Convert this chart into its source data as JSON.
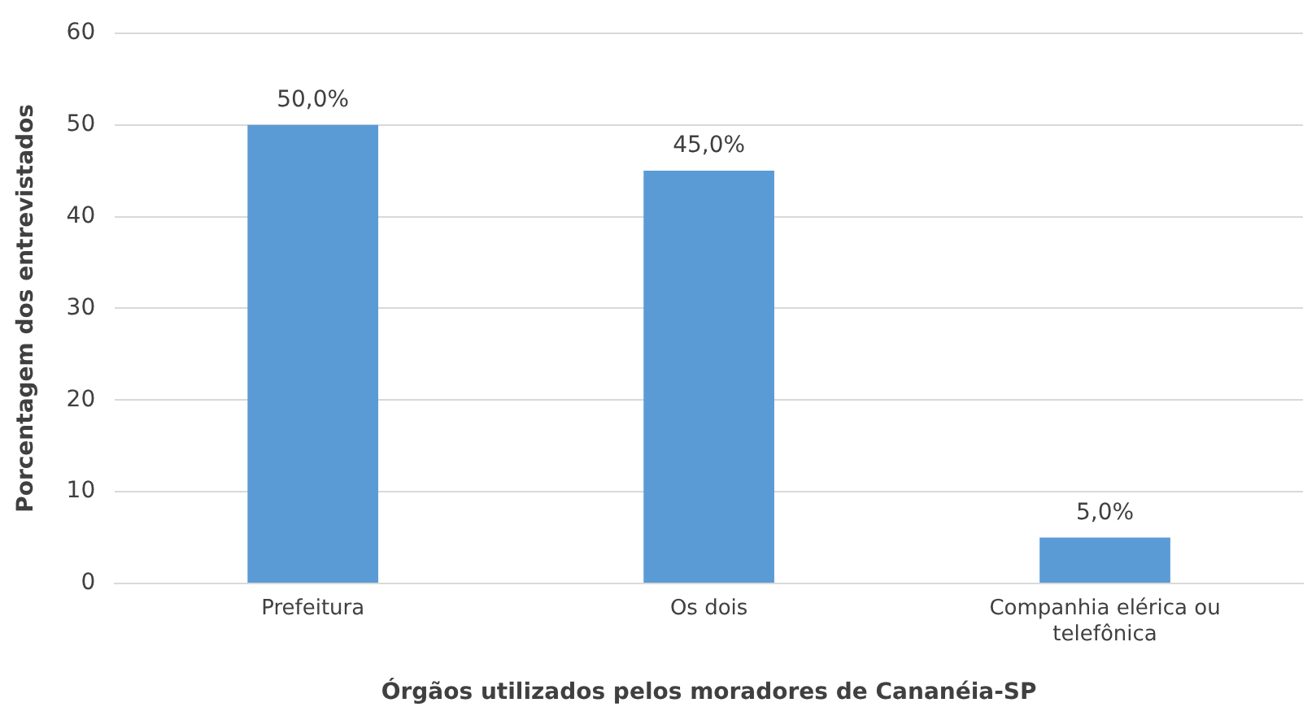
{
  "chart_data": {
    "type": "bar",
    "xlabel": "Órgãos utilizados pelos moradores de Cananéia-SP",
    "ylabel": "Porcentagem dos entrevistados",
    "categories": [
      "Prefeitura",
      "Os dois",
      "Companhia elérica ou telefônica"
    ],
    "values": [
      50,
      45,
      5
    ],
    "color": "#5b9bd5",
    "value_labels": [
      "50,0%",
      "45,0%",
      "5,0%"
    ],
    "ylim": [
      0,
      60
    ],
    "yticks": [
      0,
      10,
      20,
      30,
      40,
      50,
      60
    ],
    "grid": "y",
    "legend": false
  }
}
